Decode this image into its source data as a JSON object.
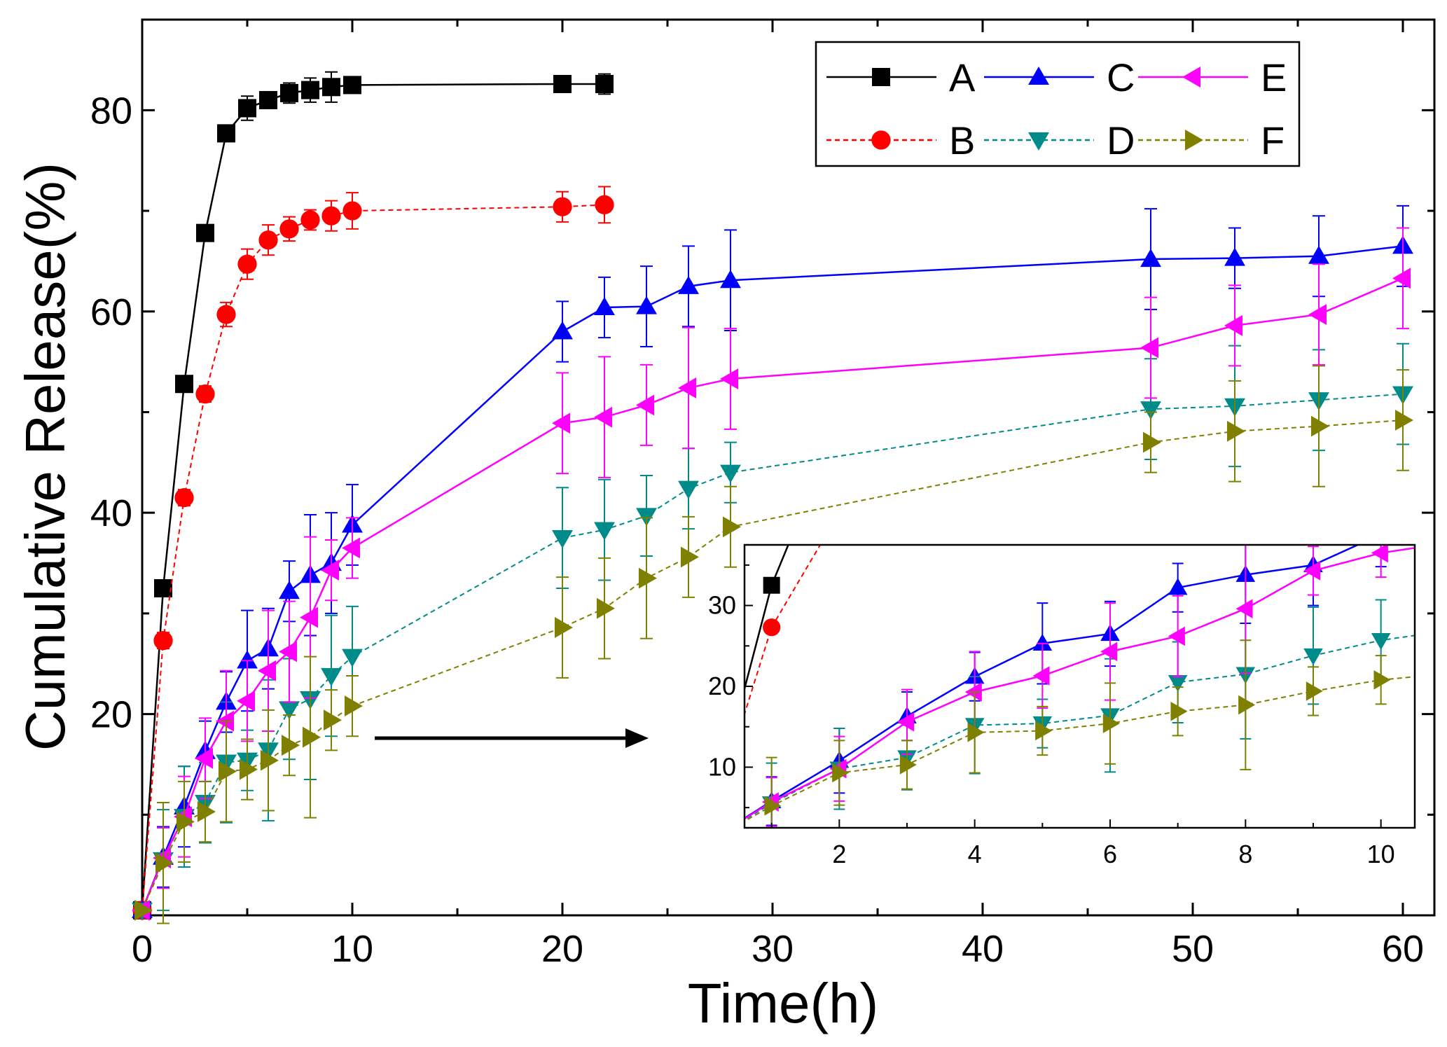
{
  "chart_data": {
    "type": "line",
    "title": "",
    "xlabel": "Time(h)",
    "ylabel": "Cumulative Release(%)",
    "xlim": [
      0,
      61.5
    ],
    "ylim": [
      0,
      89
    ],
    "xticks": [
      0,
      10,
      20,
      30,
      40,
      50,
      60
    ],
    "yticks": [
      20,
      40,
      60,
      80
    ],
    "legend_position": "top-right",
    "series": [
      {
        "name": "A",
        "color": "#000000",
        "marker": "square",
        "dashed": false,
        "x": [
          0,
          1,
          2,
          3,
          4,
          5,
          6,
          7,
          8,
          9,
          10,
          20,
          22
        ],
        "y": [
          0.5,
          32.5,
          52.8,
          67.8,
          77.7,
          80.2,
          81.0,
          81.7,
          82.0,
          82.3,
          82.5,
          82.6,
          82.6
        ],
        "err": [
          0,
          0.8,
          0.8,
          0.8,
          0.8,
          1.2,
          0.8,
          1.0,
          1.2,
          1.5,
          0.8,
          0.8,
          1.0
        ]
      },
      {
        "name": "B",
        "color": "#ff0000",
        "marker": "circle",
        "dashed": true,
        "x": [
          0,
          1,
          2,
          3,
          4,
          5,
          6,
          7,
          8,
          9,
          10,
          20,
          22
        ],
        "y": [
          0.5,
          27.3,
          41.5,
          51.8,
          59.7,
          64.7,
          67.1,
          68.2,
          69.1,
          69.5,
          70.0,
          70.4,
          70.6
        ],
        "err": [
          0,
          0.8,
          0.8,
          0.8,
          1.2,
          1.5,
          1.5,
          1.2,
          1.0,
          1.5,
          1.8,
          1.5,
          1.8
        ]
      },
      {
        "name": "C",
        "color": "#0000ff",
        "marker": "triangle-up",
        "dashed": false,
        "x": [
          0,
          1,
          2,
          3,
          4,
          5,
          6,
          7,
          8,
          9,
          10,
          20,
          22,
          24,
          26,
          28,
          48,
          52,
          56,
          60
        ],
        "y": [
          0.5,
          5.8,
          10.8,
          16.3,
          21.2,
          25.3,
          26.5,
          32.2,
          33.8,
          35.0,
          38.8,
          58.0,
          60.4,
          60.5,
          62.5,
          63.1,
          65.2,
          65.3,
          65.5,
          66.5
        ],
        "err": [
          0,
          3,
          4,
          3,
          3,
          5,
          4,
          3,
          6,
          5,
          4,
          3,
          3,
          4,
          4,
          5,
          5,
          3,
          4,
          4
        ]
      },
      {
        "name": "D",
        "color": "#008b8b",
        "marker": "triangle-down",
        "dashed": true,
        "x": [
          0,
          1,
          2,
          3,
          4,
          5,
          6,
          7,
          8,
          9,
          10,
          20,
          22,
          24,
          26,
          28,
          48,
          52,
          56,
          60
        ],
        "y": [
          0.5,
          5.5,
          9.8,
          11.2,
          15.2,
          15.4,
          16.4,
          20.5,
          21.5,
          23.8,
          25.7,
          37.5,
          38.3,
          39.7,
          42.4,
          44.0,
          50.3,
          50.6,
          51.2,
          51.8
        ],
        "err": [
          0,
          5,
          5,
          4,
          6,
          3,
          7,
          5,
          8,
          6,
          5,
          5,
          5,
          4,
          4,
          3,
          5,
          6,
          5,
          5
        ]
      },
      {
        "name": "E",
        "color": "#ff00ff",
        "marker": "triangle-left",
        "dashed": false,
        "x": [
          0,
          1,
          2,
          3,
          4,
          5,
          6,
          7,
          8,
          9,
          10,
          20,
          22,
          24,
          26,
          28,
          48,
          52,
          56,
          60
        ],
        "y": [
          0.5,
          5.7,
          9.8,
          15.6,
          19.3,
          21.3,
          24.3,
          26.2,
          29.6,
          34.3,
          36.5,
          48.9,
          49.5,
          50.7,
          52.4,
          53.3,
          56.4,
          58.6,
          59.7,
          63.3
        ],
        "err": [
          0,
          3,
          4,
          4,
          5,
          4,
          6,
          5,
          8,
          3,
          3,
          5,
          6,
          4,
          6,
          5,
          5,
          4,
          5,
          5
        ]
      },
      {
        "name": "F",
        "color": "#808000",
        "marker": "triangle-right",
        "dashed": true,
        "x": [
          0,
          1,
          2,
          3,
          4,
          5,
          6,
          7,
          8,
          9,
          10,
          20,
          22,
          24,
          26,
          28,
          48,
          52,
          56,
          60
        ],
        "y": [
          0.5,
          5.2,
          9.3,
          10.3,
          14.3,
          14.5,
          15.4,
          16.9,
          17.7,
          19.4,
          20.8,
          28.6,
          30.5,
          33.5,
          35.6,
          38.6,
          47.0,
          48.1,
          48.6,
          49.2
        ],
        "err": [
          0,
          6,
          4,
          3,
          5,
          3,
          5,
          3,
          8,
          3,
          3,
          5,
          5,
          6,
          4,
          4,
          3,
          5,
          6,
          5
        ]
      }
    ],
    "inset": {
      "xlim": [
        0.6,
        10.5
      ],
      "ylim": [
        2.5,
        37.5
      ],
      "xticks": [
        2,
        4,
        6,
        8,
        10
      ],
      "yticks": [
        10,
        20,
        30
      ]
    }
  }
}
